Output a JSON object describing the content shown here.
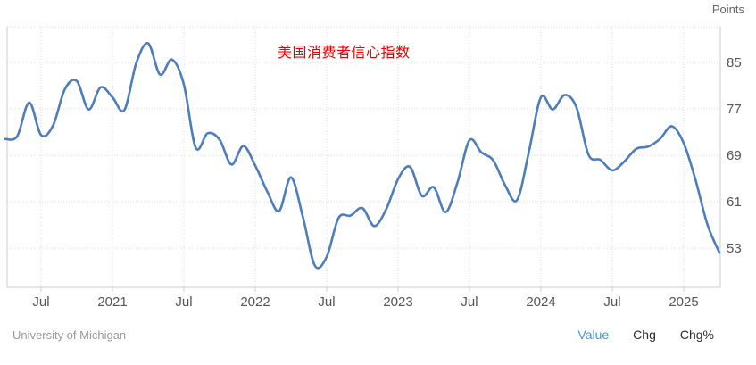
{
  "header": {
    "units_label": "Points"
  },
  "annotation": {
    "title": "美国消费者信心指数"
  },
  "footer": {
    "source": "University of Michigan",
    "tabs": [
      {
        "label": "Value",
        "active": true
      },
      {
        "label": "Chg",
        "active": false
      },
      {
        "label": "Chg%",
        "active": false
      }
    ]
  },
  "colors": {
    "line": "#4e7dbd",
    "grid": "#dcdcdc",
    "plot_border": "#cccccc",
    "axis_text": "#555555",
    "title_red": "#ee0000",
    "tab_active_blue": "#3e97e2",
    "source_gray": "#9a9a9a"
  },
  "chart_data": {
    "type": "line",
    "title": "美国消费者信心指数",
    "ylabel": "Points",
    "legend": "none",
    "grid": true,
    "smooth": true,
    "x": [
      "2020-04",
      "2020-05",
      "2020-06",
      "2020-07",
      "2020-08",
      "2020-09",
      "2020-10",
      "2020-11",
      "2020-12",
      "2021-01",
      "2021-02",
      "2021-03",
      "2021-04",
      "2021-05",
      "2021-06",
      "2021-07",
      "2021-08",
      "2021-09",
      "2021-10",
      "2021-11",
      "2021-12",
      "2022-01",
      "2022-02",
      "2022-03",
      "2022-04",
      "2022-05",
      "2022-06",
      "2022-07",
      "2022-08",
      "2022-09",
      "2022-10",
      "2022-11",
      "2022-12",
      "2023-01",
      "2023-02",
      "2023-03",
      "2023-04",
      "2023-05",
      "2023-06",
      "2023-07",
      "2023-08",
      "2023-09",
      "2023-10",
      "2023-11",
      "2023-12",
      "2024-01",
      "2024-02",
      "2024-03",
      "2024-04",
      "2024-05",
      "2024-06",
      "2024-07",
      "2024-08",
      "2024-09",
      "2024-10",
      "2024-11",
      "2024-12",
      "2025-01",
      "2025-02",
      "2025-03",
      "2025-04"
    ],
    "values": [
      71.8,
      72.3,
      78.1,
      72.5,
      74.1,
      80.4,
      81.8,
      76.9,
      80.7,
      79.0,
      76.8,
      84.9,
      88.3,
      82.9,
      85.5,
      81.2,
      70.3,
      72.8,
      71.7,
      67.4,
      70.6,
      67.2,
      62.8,
      59.4,
      65.2,
      58.4,
      50.0,
      51.5,
      58.2,
      58.6,
      59.9,
      56.8,
      59.7,
      64.9,
      67.0,
      62.0,
      63.5,
      59.2,
      64.4,
      71.6,
      69.5,
      68.1,
      63.8,
      61.3,
      69.7,
      79.0,
      76.9,
      79.4,
      77.2,
      69.1,
      68.2,
      66.4,
      67.9,
      70.1,
      70.5,
      71.8,
      74.0,
      71.1,
      64.7,
      57.0,
      52.2
    ],
    "y_ticks": [
      85,
      77,
      69,
      61,
      53
    ],
    "ylim": [
      46.2,
      91.2
    ],
    "x_ticks": [
      {
        "index": 3,
        "label": "Jul"
      },
      {
        "index": 9,
        "label": "2021"
      },
      {
        "index": 15,
        "label": "Jul"
      },
      {
        "index": 21,
        "label": "2022"
      },
      {
        "index": 27,
        "label": "Jul"
      },
      {
        "index": 33,
        "label": "2023"
      },
      {
        "index": 39,
        "label": "Jul"
      },
      {
        "index": 45,
        "label": "2024"
      },
      {
        "index": 51,
        "label": "Jul"
      },
      {
        "index": 57,
        "label": "2025"
      }
    ]
  }
}
